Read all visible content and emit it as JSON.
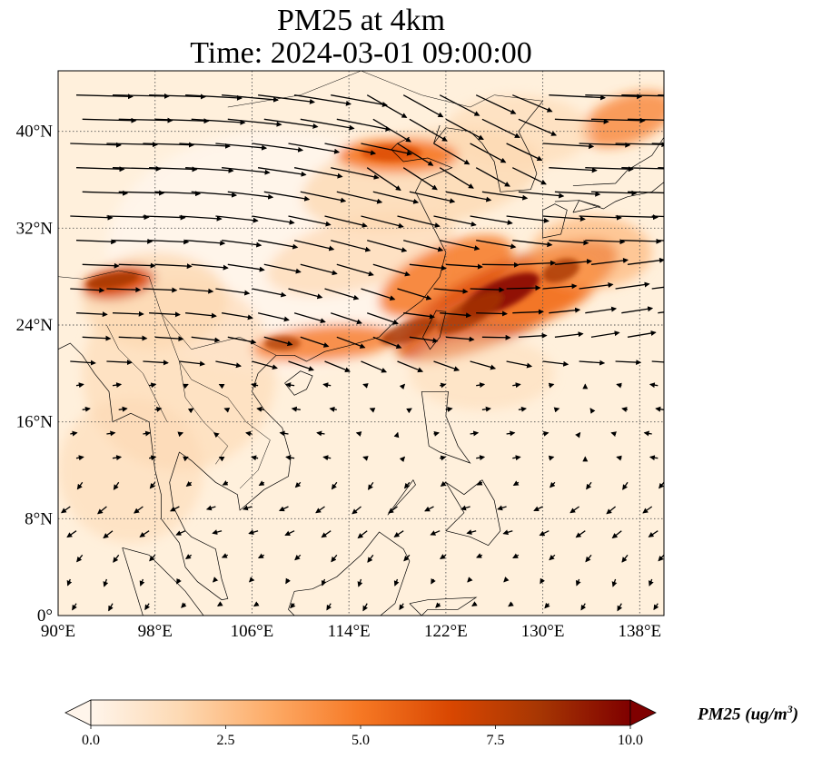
{
  "title_line1": "PM25 at 4km",
  "title_line2": "Time: 2024-03-01 09:00:00",
  "map": {
    "lon_range": [
      90,
      140
    ],
    "lat_range": [
      0,
      45
    ],
    "lon_ticks": [
      "90°E",
      "98°E",
      "106°E",
      "114°E",
      "122°E",
      "130°E",
      "138°E"
    ],
    "lat_ticks": [
      "0°",
      "8°N",
      "16°N",
      "24°N",
      "32°N",
      "40°N"
    ],
    "gridlines": true,
    "gridline_style": "dotted",
    "wind_vectors": true,
    "coastlines": true
  },
  "colorbar": {
    "label_prefix": "PM25 (ug/m",
    "label_sup": "3",
    "label_suffix": ")",
    "min": 0.0,
    "max": 10.0,
    "ticks": [
      "0.0",
      "2.5",
      "5.0",
      "7.5",
      "10.0"
    ],
    "extend": "both",
    "colormap": [
      "#fff5eb",
      "#fdd9b3",
      "#fdab67",
      "#f67824",
      "#d94701",
      "#a63603",
      "#7f0000"
    ]
  }
}
